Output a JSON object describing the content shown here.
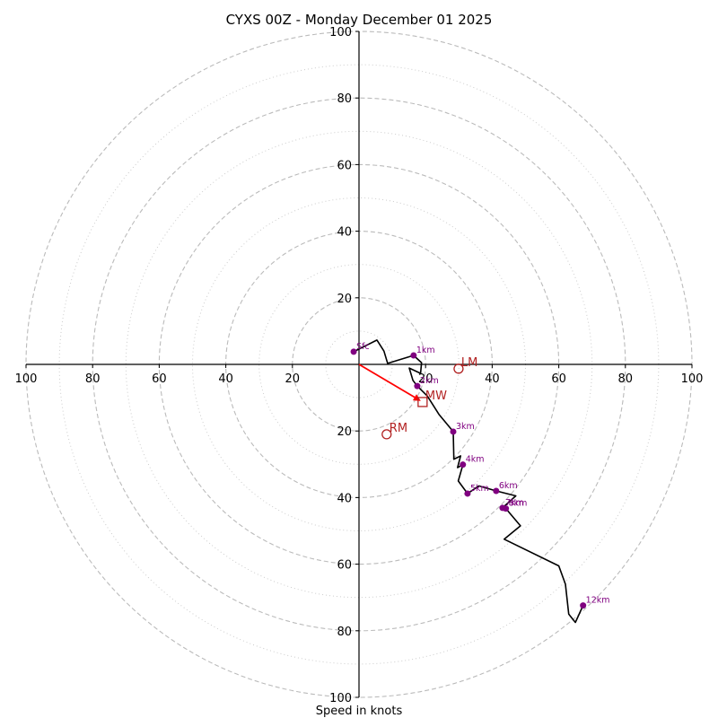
{
  "chart_data": {
    "type": "line",
    "subtype": "hodograph",
    "title": "CYXS 00Z - Monday December 01 2025",
    "xlabel": "Speed in knots",
    "ylabel": "",
    "units": "knots",
    "axis_range": [
      -100,
      100
    ],
    "range_rings": {
      "major": [
        20,
        40,
        60,
        80,
        100
      ],
      "minor": [
        10,
        30,
        50,
        70,
        90
      ],
      "major_style": "dashed",
      "minor_style": "dotted"
    },
    "x_tick_labels": [
      "100",
      "80",
      "60",
      "40",
      "20",
      "20",
      "40",
      "60",
      "80",
      "100"
    ],
    "x_tick_values": [
      -100,
      -80,
      -60,
      -40,
      -20,
      20,
      40,
      60,
      80,
      100
    ],
    "y_tick_labels": [
      "100",
      "80",
      "60",
      "40",
      "20",
      "20",
      "40",
      "60",
      "80",
      "100"
    ],
    "y_tick_values": [
      100,
      80,
      60,
      40,
      20,
      -20,
      -40,
      -60,
      -80,
      -100
    ],
    "grid": true,
    "legend": "none",
    "colors": {
      "trace": "#000000",
      "height_marker": "#800080",
      "storm_motion": "#b22222",
      "mean_wind_vector": "#ff0000",
      "ring": "#bbbbbb",
      "axis": "#000000"
    },
    "series": [
      {
        "name": "wind-profile",
        "u": [
          -1.6,
          5.4,
          7.5,
          8.6,
          16.4,
          18.8,
          18.5,
          15.1,
          16.2,
          17.5,
          20.5,
          24.0,
          28.3,
          28.5,
          30.5,
          29.6,
          31.2,
          29.8,
          32.6,
          36.0,
          41.2,
          47.1,
          43.1,
          44.1,
          48.5,
          43.6,
          60.0,
          62.0,
          63.0,
          65.0,
          67.3
        ],
        "v": [
          3.8,
          7.3,
          4.0,
          0.3,
          2.7,
          0.5,
          -2.7,
          -1.1,
          -4.8,
          -6.5,
          -9.5,
          -15.0,
          -20.2,
          -28.5,
          -27.5,
          -31.0,
          -30.1,
          -35.0,
          -38.8,
          -36.5,
          -38.0,
          -39.5,
          -43.1,
          -43.3,
          -48.5,
          -52.5,
          -60.5,
          -66.0,
          -75.0,
          -77.5,
          -72.4
        ]
      }
    ],
    "height_markers": [
      {
        "label": "Sfc",
        "u": -1.6,
        "v": 3.8
      },
      {
        "label": "1km",
        "u": 16.4,
        "v": 2.7
      },
      {
        "label": "2km",
        "u": 17.5,
        "v": -6.5
      },
      {
        "label": "3km",
        "u": 28.3,
        "v": -20.2
      },
      {
        "label": "4km",
        "u": 31.2,
        "v": -30.1
      },
      {
        "label": "5km",
        "u": 32.6,
        "v": -38.8
      },
      {
        "label": "6km",
        "u": 41.2,
        "v": -38.0
      },
      {
        "label": "7km",
        "u": 43.1,
        "v": -43.1
      },
      {
        "label": "8km",
        "u": 44.1,
        "v": -43.3
      },
      {
        "label": "12km",
        "u": 67.3,
        "v": -72.4
      }
    ],
    "storm_motion": [
      {
        "label": "LM",
        "u": 29.9,
        "v": -1.3,
        "marker": "circle"
      },
      {
        "label": "MW",
        "u": 19.1,
        "v": -11.3,
        "marker": "square"
      },
      {
        "label": "RM",
        "u": 8.3,
        "v": -21.0,
        "marker": "circle"
      }
    ],
    "mean_wind_vector": {
      "from": [
        0,
        0
      ],
      "to": [
        19.1,
        -11.3
      ]
    }
  }
}
